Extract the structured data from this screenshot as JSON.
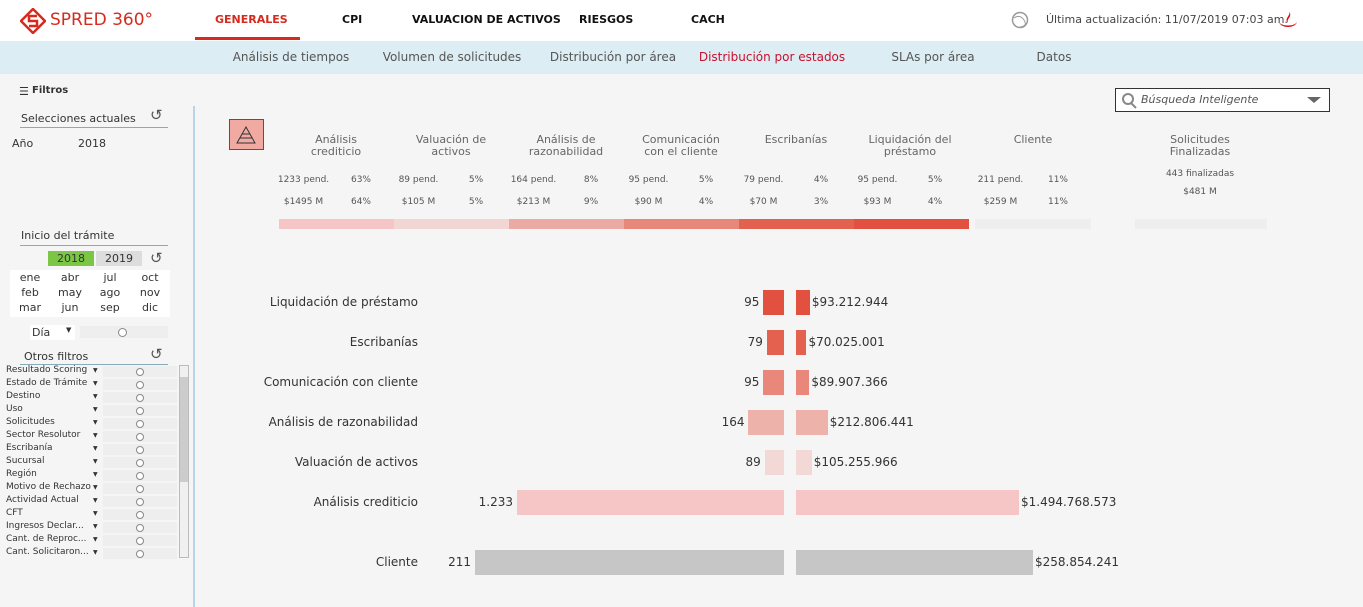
{
  "header": {
    "brand": "SPRED 360°",
    "tabs": [
      "GENERALES",
      "CPI",
      "VALUACION DE ACTIVOS",
      "RIESGOS",
      "CACH"
    ],
    "update": "Última actualización: 11/07/2019 07:03 am."
  },
  "subnav": [
    "Análisis de tiempos",
    "Volumen de solicitudes",
    "Distribución por área",
    "Distribución por estados",
    "SLAs por área",
    "Datos"
  ],
  "sidebar": {
    "filters_title": "Filtros",
    "current": "Selecciones actuales",
    "year_label": "Año",
    "year_value": "2018",
    "start": "Inicio del trámite",
    "years": [
      "2018",
      "2019"
    ],
    "months": [
      "ene",
      "abr",
      "jul",
      "oct",
      "feb",
      "may",
      "ago",
      "nov",
      "mar",
      "jun",
      "sep",
      "dic"
    ],
    "day": "Día",
    "other": "Otros filtros",
    "filters": [
      "Resultado Scoring",
      "Estado de Trámite",
      "Destino",
      "Uso",
      "Solicitudes",
      "Sector Resolutor",
      "Escribanía",
      "Sucursal",
      "Región",
      "Motivo de Rechazo",
      "Actividad Actual",
      "CFT",
      "Ingresos Declar...",
      "Cant. de Reproc...",
      "Cant. Solicitaron..."
    ]
  },
  "search": "Búsqueda Inteligente",
  "stages": [
    {
      "name": "Análisis crediticio",
      "pending": "1233 pend.",
      "pending_pct": "63%",
      "amount": "$1495 M",
      "amount_pct": "64%"
    },
    {
      "name": "Valuación de activos",
      "pending": "89 pend.",
      "pending_pct": "5%",
      "amount": "$105 M",
      "amount_pct": "5%"
    },
    {
      "name": "Análisis de razonabilidad",
      "pending": "164 pend.",
      "pending_pct": "8%",
      "amount": "$213 M",
      "amount_pct": "9%"
    },
    {
      "name": "Comunicación con el cliente",
      "pending": "95 pend.",
      "pending_pct": "5%",
      "amount": "$90 M",
      "amount_pct": "4%"
    },
    {
      "name": "Escribanías",
      "pending": "79 pend.",
      "pending_pct": "4%",
      "amount": "$70 M",
      "amount_pct": "3%"
    },
    {
      "name": "Liquidación del préstamo",
      "pending": "95 pend.",
      "pending_pct": "5%",
      "amount": "$93 M",
      "amount_pct": "4%"
    },
    {
      "name": "Cliente",
      "pending": "211 pend.",
      "pending_pct": "11%",
      "amount": "$259 M",
      "amount_pct": "11%"
    }
  ],
  "finished": {
    "name": "Solicitudes Finalizadas",
    "count": "443 finalizadas",
    "amount": "$481 M"
  },
  "chart_data": [
    {
      "type": "bar",
      "categories": [
        "Liquidación de préstamo",
        "Escribanías",
        "Comunicación con cliente",
        "Análisis de razonabilidad",
        "Valuación de activos",
        "Análisis crediticio"
      ],
      "colors": [
        "#e2513f",
        "#e4604f",
        "#e9877a",
        "#edb3ab",
        "#f2d9d5",
        "#f6c6c6"
      ],
      "series": [
        {
          "values": [
            95,
            79,
            95,
            164,
            89,
            1233
          ],
          "value_labels": [
            "95",
            "79",
            "95",
            "164",
            "89",
            "1.233"
          ]
        },
        {
          "values": [
            93212944,
            70025001,
            89907366,
            212806441,
            105255966,
            1494768573
          ],
          "value_labels": [
            "$93.212.944",
            "$70.025.001",
            "$89.907.366",
            "$212.806.441",
            "$105.255.966",
            "$1.494.768.573"
          ]
        }
      ]
    },
    {
      "type": "bar",
      "categories": [
        "Cliente"
      ],
      "colors": [
        "#c6c6c6"
      ],
      "series": [
        {
          "values": [
            211
          ],
          "value_labels": [
            "211"
          ]
        },
        {
          "values": [
            258854241
          ],
          "value_labels": [
            "$258.854.241"
          ]
        }
      ]
    }
  ]
}
